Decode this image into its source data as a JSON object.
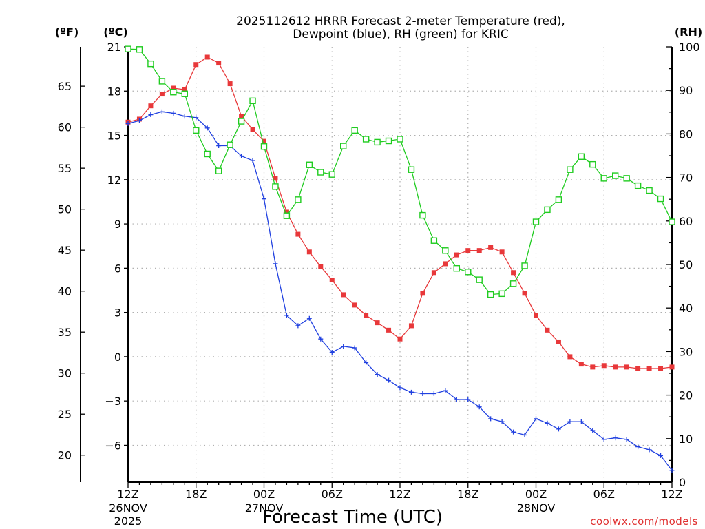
{
  "chart_data": {
    "type": "line",
    "title_line1": "2025112612 HRRR Forecast 2-meter Temperature (red),",
    "title_line2": "Dewpoint (blue), RH (green) for KRIC",
    "xlabel": "Forecast Time (UTC)",
    "credit": "coolwx.com/models",
    "y_left_inner_unit": "(ºC)",
    "y_left_outer_unit": "(ºF)",
    "y_right_unit": "(RH)",
    "ylim_c": [
      -8.5,
      21
    ],
    "ylim_rh": [
      0,
      100
    ],
    "grid": true,
    "x_hours_range": [
      0,
      48
    ],
    "x_ticks": [
      {
        "hour": 0,
        "label": "12Z",
        "sub1": "26NOV",
        "sub2": "2025"
      },
      {
        "hour": 6,
        "label": "18Z",
        "sub1": "",
        "sub2": ""
      },
      {
        "hour": 12,
        "label": "00Z",
        "sub1": "27NOV",
        "sub2": ""
      },
      {
        "hour": 18,
        "label": "06Z",
        "sub1": "",
        "sub2": ""
      },
      {
        "hour": 24,
        "label": "12Z",
        "sub1": "",
        "sub2": ""
      },
      {
        "hour": 30,
        "label": "18Z",
        "sub1": "",
        "sub2": ""
      },
      {
        "hour": 36,
        "label": "00Z",
        "sub1": "28NOV",
        "sub2": ""
      },
      {
        "hour": 42,
        "label": "06Z",
        "sub1": "",
        "sub2": ""
      },
      {
        "hour": 48,
        "label": "12Z",
        "sub1": "",
        "sub2": ""
      }
    ],
    "y_ticks_c": [
      "21",
      "18",
      "15",
      "12",
      "9",
      "6",
      "3",
      "0",
      "−3",
      "−6"
    ],
    "y_ticks_c_values": [
      21,
      18,
      15,
      12,
      9,
      6,
      3,
      0,
      -3,
      -6
    ],
    "y_ticks_f": [
      "65",
      "60",
      "55",
      "50",
      "45",
      "40",
      "35",
      "30",
      "25",
      "20"
    ],
    "y_ticks_f_values": [
      65,
      60,
      55,
      50,
      45,
      40,
      35,
      30,
      25,
      20
    ],
    "y_ticks_rh": [
      "100",
      "90",
      "80",
      "70",
      "60",
      "50",
      "40",
      "30",
      "20",
      "10",
      "0"
    ],
    "y_ticks_rh_values": [
      100,
      90,
      80,
      70,
      60,
      50,
      40,
      30,
      20,
      10,
      0
    ],
    "series": [
      {
        "name": "Temperature",
        "unit": "C",
        "color": "#e8383a",
        "marker": "filled-square",
        "values": [
          15.9,
          16.1,
          17.0,
          17.8,
          18.2,
          18.1,
          19.8,
          20.3,
          19.9,
          18.5,
          16.3,
          15.4,
          14.6,
          12.1,
          9.8,
          8.3,
          7.1,
          6.1,
          5.2,
          4.2,
          3.5,
          2.8,
          2.3,
          1.8,
          1.2,
          2.1,
          4.3,
          5.7,
          6.3,
          6.9,
          7.2,
          7.2,
          7.4,
          7.1,
          5.7,
          4.3,
          2.8,
          1.8,
          1.0,
          0.0,
          -0.5,
          -0.7,
          -0.6,
          -0.7,
          -0.7,
          -0.8,
          -0.8,
          -0.8,
          -0.7
        ]
      },
      {
        "name": "Dewpoint",
        "unit": "C",
        "color": "#2040e0",
        "marker": "plus",
        "values": [
          15.8,
          16.0,
          16.4,
          16.6,
          16.5,
          16.3,
          16.2,
          15.5,
          14.3,
          14.3,
          13.6,
          13.3,
          10.7,
          6.3,
          2.8,
          2.1,
          2.6,
          1.2,
          0.3,
          0.7,
          0.6,
          -0.4,
          -1.2,
          -1.6,
          -2.1,
          -2.4,
          -2.5,
          -2.5,
          -2.3,
          -2.9,
          -2.9,
          -3.4,
          -4.2,
          -4.4,
          -5.1,
          -5.3,
          -4.2,
          -4.5,
          -4.9,
          -4.4,
          -4.4,
          -5.0,
          -5.6,
          -5.5,
          -5.6,
          -6.1,
          -6.3,
          -6.7,
          -7.7
        ]
      },
      {
        "name": "RH",
        "unit": "%",
        "color": "#20cc20",
        "marker": "open-square",
        "values": [
          99.5,
          99.4,
          96.1,
          92.1,
          89.6,
          89.2,
          80.8,
          75.4,
          71.5,
          77.5,
          82.9,
          87.6,
          77.1,
          67.9,
          61.2,
          64.9,
          72.9,
          71.2,
          70.7,
          77.2,
          80.8,
          78.8,
          78.1,
          78.4,
          78.8,
          71.8,
          61.3,
          55.5,
          53.2,
          49.1,
          48.3,
          46.5,
          43.1,
          43.3,
          45.6,
          49.7,
          59.8,
          62.6,
          64.9,
          71.8,
          74.8,
          73.0,
          69.8,
          70.4,
          69.8,
          68.1,
          67.0,
          65.1,
          59.8
        ]
      }
    ]
  }
}
